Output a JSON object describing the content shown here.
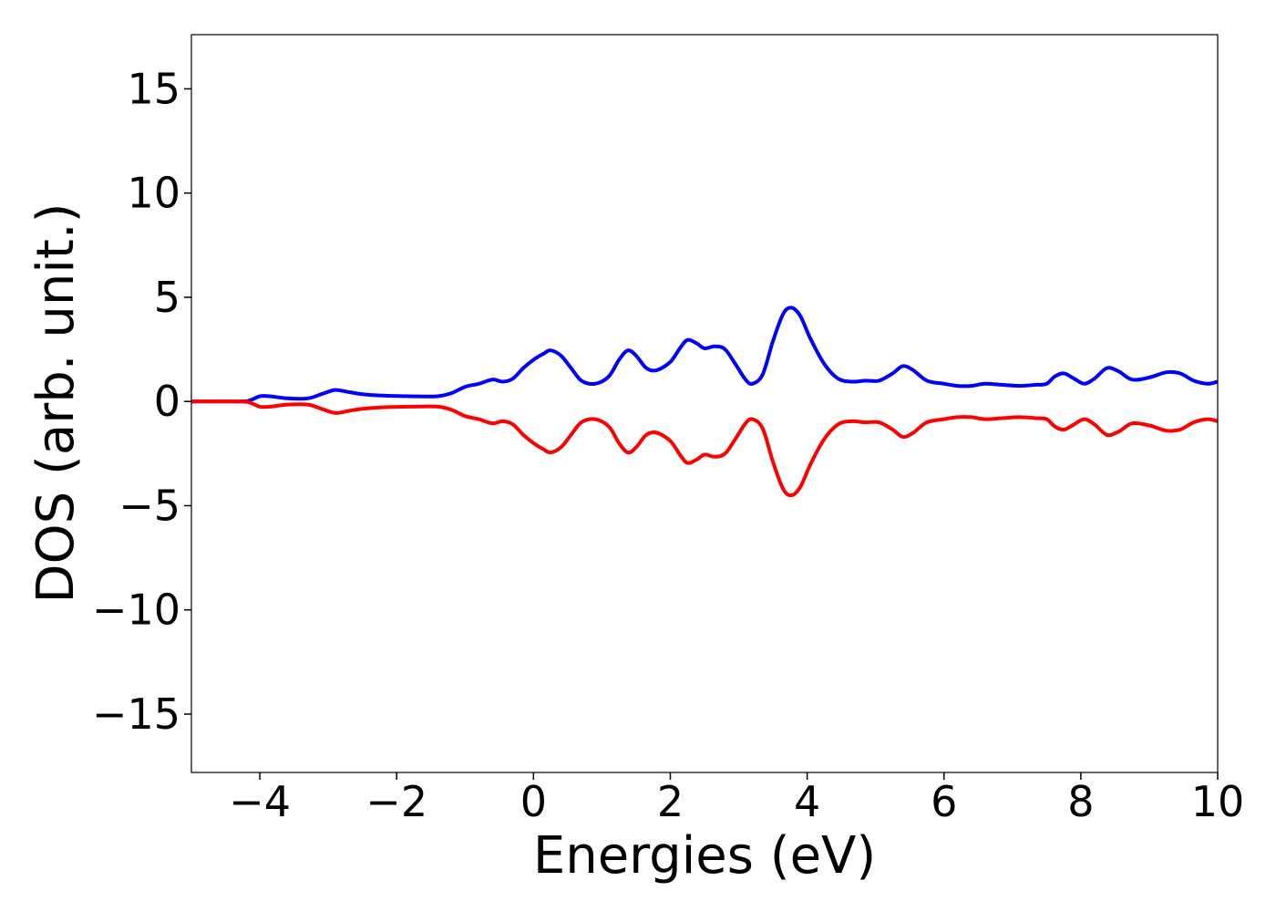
{
  "chart_data": {
    "type": "line",
    "title": "",
    "xlabel": "Energies (eV)",
    "ylabel": "DOS (arb. unit.)",
    "xlim": [
      -5,
      10
    ],
    "ylim": [
      -17.8,
      17.6
    ],
    "xticks": [
      -4,
      -2,
      0,
      2,
      4,
      6,
      8,
      10
    ],
    "xtick_labels": [
      "−4",
      "−2",
      "0",
      "2",
      "4",
      "6",
      "8",
      "10"
    ],
    "yticks": [
      15,
      10,
      5,
      0,
      -5,
      -10,
      -15
    ],
    "ytick_labels": [
      "15",
      "10",
      "5",
      "0",
      "−5",
      "−10",
      "−15"
    ],
    "grid": false,
    "legend": false,
    "series": [
      {
        "color": "#0000ff",
        "x": [
          -5,
          -4.3,
          -4.15,
          -4.0,
          -3.85,
          -3.6,
          -3.3,
          -3.1,
          -2.9,
          -2.7,
          -2.5,
          -2.2,
          -1.8,
          -1.4,
          -1.2,
          -1.0,
          -0.8,
          -0.6,
          -0.45,
          -0.3,
          -0.15,
          0.0,
          0.15,
          0.25,
          0.4,
          0.55,
          0.7,
          0.9,
          1.1,
          1.25,
          1.38,
          1.5,
          1.65,
          1.8,
          2.0,
          2.15,
          2.25,
          2.38,
          2.5,
          2.65,
          2.8,
          2.95,
          3.1,
          3.2,
          3.35,
          3.5,
          3.65,
          3.77,
          3.9,
          4.05,
          4.25,
          4.45,
          4.65,
          4.85,
          5.05,
          5.25,
          5.4,
          5.55,
          5.75,
          6.0,
          6.2,
          6.4,
          6.6,
          6.85,
          7.1,
          7.35,
          7.5,
          7.62,
          7.75,
          7.9,
          8.05,
          8.2,
          8.38,
          8.55,
          8.75,
          9.0,
          9.25,
          9.45,
          9.65,
          9.85,
          10.0
        ],
        "y": [
          0.0,
          0.0,
          0.05,
          0.25,
          0.25,
          0.15,
          0.15,
          0.35,
          0.55,
          0.45,
          0.35,
          0.28,
          0.25,
          0.25,
          0.4,
          0.7,
          0.85,
          1.05,
          0.95,
          1.1,
          1.6,
          2.0,
          2.3,
          2.45,
          2.2,
          1.6,
          1.0,
          0.85,
          1.2,
          2.0,
          2.45,
          2.2,
          1.6,
          1.5,
          1.9,
          2.6,
          2.95,
          2.8,
          2.55,
          2.65,
          2.5,
          1.8,
          1.05,
          0.85,
          1.3,
          2.9,
          4.2,
          4.5,
          4.1,
          3.0,
          1.8,
          1.1,
          0.95,
          1.0,
          1.0,
          1.35,
          1.7,
          1.5,
          1.0,
          0.85,
          0.75,
          0.75,
          0.85,
          0.8,
          0.75,
          0.8,
          0.85,
          1.2,
          1.35,
          1.1,
          0.85,
          1.1,
          1.6,
          1.45,
          1.05,
          1.15,
          1.4,
          1.35,
          1.0,
          0.85,
          0.95
        ]
      },
      {
        "color": "#ff0000",
        "x": [
          -5,
          -4.3,
          -4.15,
          -4.0,
          -3.85,
          -3.6,
          -3.3,
          -3.1,
          -2.9,
          -2.7,
          -2.5,
          -2.2,
          -1.8,
          -1.4,
          -1.2,
          -1.0,
          -0.8,
          -0.6,
          -0.45,
          -0.3,
          -0.15,
          0.0,
          0.15,
          0.25,
          0.4,
          0.55,
          0.7,
          0.9,
          1.1,
          1.25,
          1.38,
          1.5,
          1.65,
          1.8,
          2.0,
          2.15,
          2.25,
          2.38,
          2.5,
          2.65,
          2.8,
          2.95,
          3.1,
          3.2,
          3.35,
          3.5,
          3.65,
          3.77,
          3.9,
          4.05,
          4.25,
          4.45,
          4.65,
          4.85,
          5.05,
          5.25,
          5.4,
          5.55,
          5.75,
          6.0,
          6.2,
          6.4,
          6.6,
          6.85,
          7.1,
          7.35,
          7.5,
          7.62,
          7.75,
          7.9,
          8.05,
          8.2,
          8.38,
          8.55,
          8.75,
          9.0,
          9.25,
          9.45,
          9.65,
          9.85,
          10.0
        ],
        "y": [
          0.0,
          0.0,
          -0.05,
          -0.25,
          -0.25,
          -0.15,
          -0.15,
          -0.35,
          -0.55,
          -0.45,
          -0.35,
          -0.28,
          -0.25,
          -0.25,
          -0.4,
          -0.7,
          -0.85,
          -1.05,
          -0.95,
          -1.1,
          -1.6,
          -2.0,
          -2.3,
          -2.45,
          -2.2,
          -1.6,
          -1.0,
          -0.85,
          -1.2,
          -2.0,
          -2.45,
          -2.2,
          -1.6,
          -1.5,
          -1.9,
          -2.6,
          -2.95,
          -2.8,
          -2.55,
          -2.65,
          -2.5,
          -1.8,
          -1.05,
          -0.85,
          -1.3,
          -2.9,
          -4.2,
          -4.5,
          -4.1,
          -3.0,
          -1.8,
          -1.1,
          -0.95,
          -1.0,
          -1.0,
          -1.35,
          -1.7,
          -1.5,
          -1.0,
          -0.85,
          -0.75,
          -0.75,
          -0.85,
          -0.8,
          -0.75,
          -0.8,
          -0.85,
          -1.2,
          -1.35,
          -1.1,
          -0.85,
          -1.1,
          -1.6,
          -1.45,
          -1.05,
          -1.15,
          -1.4,
          -1.35,
          -1.0,
          -0.85,
          -0.95
        ]
      }
    ]
  }
}
